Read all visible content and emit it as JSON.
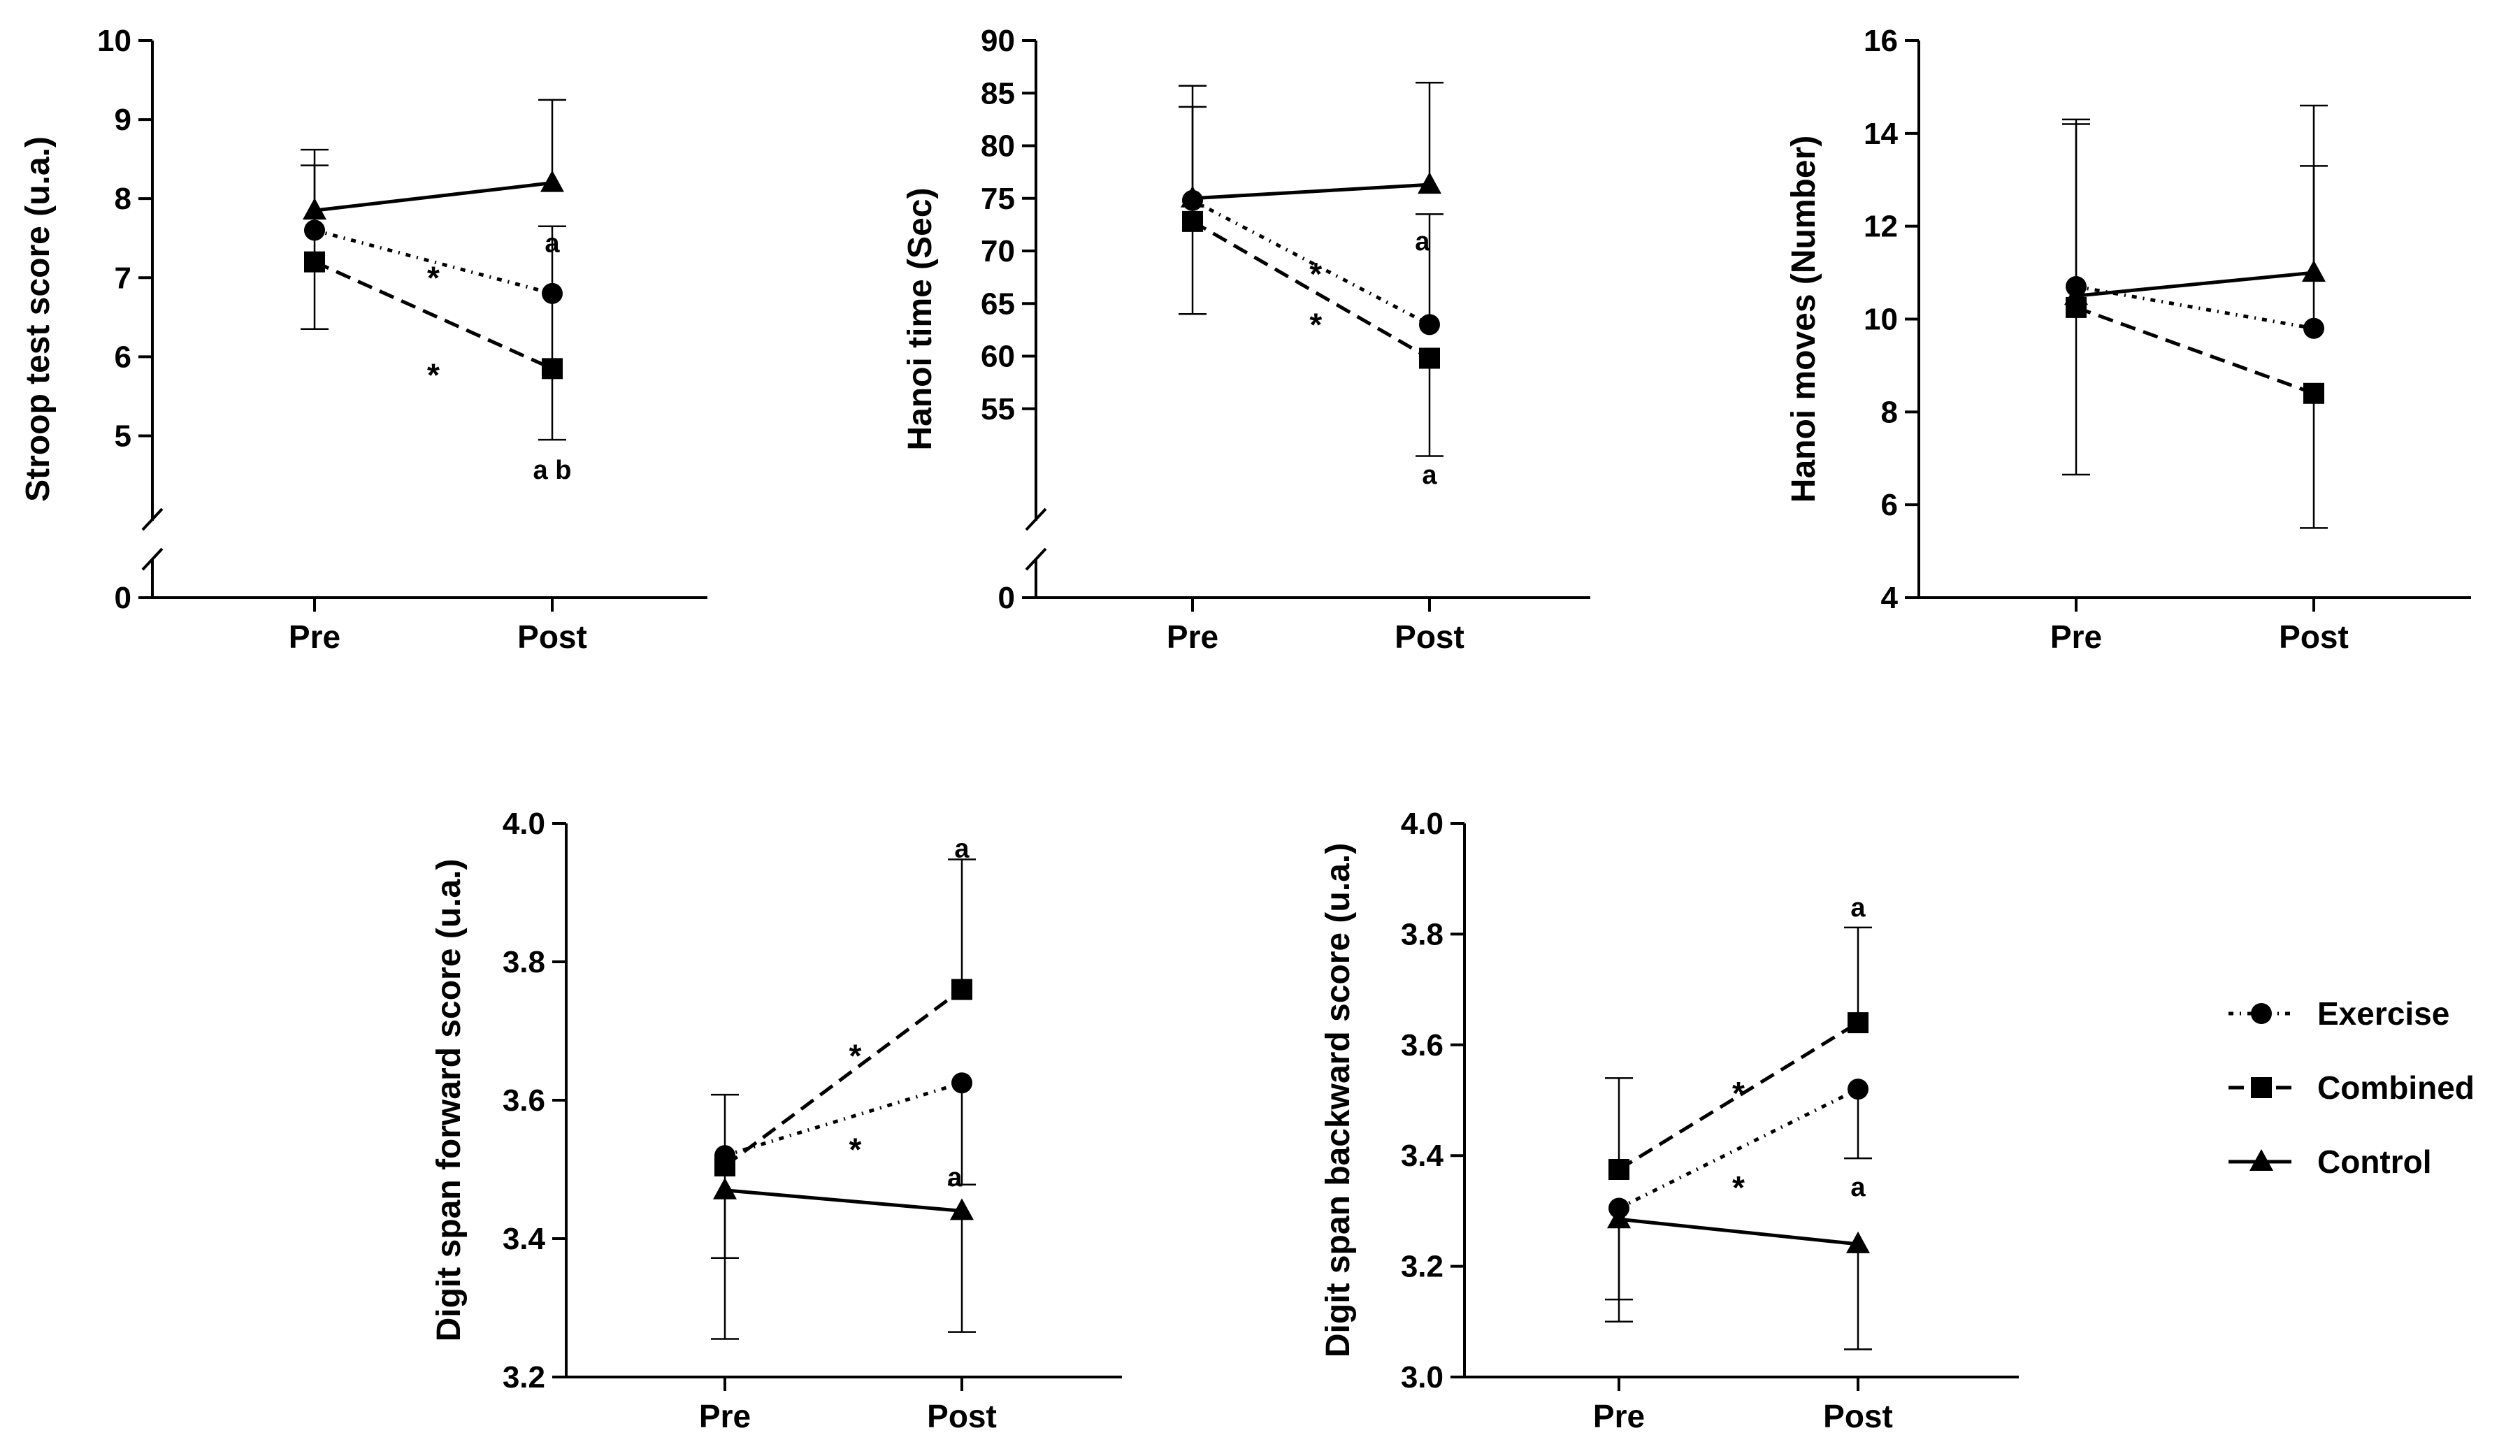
{
  "legend": {
    "items": [
      {
        "label": "Exercise",
        "marker": "circle",
        "dash": "long-dash"
      },
      {
        "label": "Combined",
        "marker": "square",
        "dash": "dash-dot"
      },
      {
        "label": "Control",
        "marker": "triangle",
        "dash": "solid"
      }
    ]
  },
  "chart_data": [
    {
      "type": "line",
      "ylabel": "Stroop test score (u.a.)",
      "categories": [
        "Pre",
        "Post"
      ],
      "yticks": [
        5,
        6,
        7,
        8,
        9,
        10
      ],
      "zero_label": "0",
      "broken_axis": true,
      "ylim": [
        4.5,
        10
      ],
      "series": [
        {
          "name": "Exercise",
          "values": [
            7.6,
            6.8
          ],
          "err_up": [
            null,
            7.65
          ],
          "err_down": [
            null,
            4.95
          ]
        },
        {
          "name": "Combined",
          "values": [
            7.2,
            5.85
          ],
          "err_up": [
            8.42,
            null
          ],
          "err_down": [
            6.35,
            null
          ]
        },
        {
          "name": "Control",
          "values": [
            7.85,
            8.2
          ],
          "err_up": [
            8.62,
            9.25
          ],
          "err_down": [
            null,
            null
          ]
        }
      ],
      "annotations": [
        {
          "text": "*",
          "x": 0.5,
          "y": 7.05
        },
        {
          "text": "*",
          "x": 0.5,
          "y": 5.82
        },
        {
          "text": "a",
          "x": 1.0,
          "y": 7.45
        },
        {
          "text": "a b",
          "x": 1.0,
          "y": 4.58
        }
      ]
    },
    {
      "type": "line",
      "ylabel": "Hanoi time (Sec)",
      "categories": [
        "Pre",
        "Post"
      ],
      "yticks": [
        55,
        60,
        65,
        70,
        75,
        80,
        85,
        90
      ],
      "zero_label": "0",
      "broken_axis": true,
      "ylim": [
        50,
        90
      ],
      "series": [
        {
          "name": "Exercise",
          "values": [
            74.8,
            63.0
          ],
          "err_up": [
            83.7,
            73.5
          ],
          "err_down": [
            64.0,
            null
          ]
        },
        {
          "name": "Combined",
          "values": [
            72.8,
            59.8
          ],
          "err_up": [
            null,
            null
          ],
          "err_down": [
            null,
            50.5
          ]
        },
        {
          "name": "Control",
          "values": [
            75.0,
            76.3
          ],
          "err_up": [
            85.7,
            86.0
          ],
          "err_down": [
            null,
            null
          ]
        }
      ],
      "annotations": [
        {
          "text": "*",
          "x": 0.52,
          "y": 68.2
        },
        {
          "text": "*",
          "x": 0.52,
          "y": 63.4
        },
        {
          "text": "a",
          "x": 0.97,
          "y": 71.0
        },
        {
          "text": "a",
          "x": 1.0,
          "y": 48.8
        }
      ]
    },
    {
      "type": "line",
      "ylabel": "Hanoi moves (Number)",
      "categories": [
        "Pre",
        "Post"
      ],
      "yticks": [
        4,
        6,
        8,
        10,
        12,
        14,
        16
      ],
      "ylim": [
        4,
        16
      ],
      "series": [
        {
          "name": "Exercise",
          "values": [
            10.7,
            9.8
          ],
          "err_up": [
            14.3,
            13.3
          ],
          "err_down": [
            null,
            null
          ]
        },
        {
          "name": "Combined",
          "values": [
            10.25,
            8.4
          ],
          "err_up": [
            null,
            null
          ],
          "err_down": [
            6.65,
            5.5
          ]
        },
        {
          "name": "Control",
          "values": [
            10.5,
            11.0
          ],
          "err_up": [
            14.2,
            14.6
          ],
          "err_down": [
            null,
            null
          ]
        }
      ],
      "annotations": []
    },
    {
      "type": "line",
      "ylabel": "Digit span forward score (u.a.)",
      "categories": [
        "Pre",
        "Post"
      ],
      "yticks": [
        3.2,
        3.4,
        3.6,
        3.8,
        4.0
      ],
      "ytick_labels": [
        "3.2",
        "3.4",
        "3.6",
        "3.8",
        "4.0"
      ],
      "ylim": [
        3.2,
        4.0
      ],
      "series": [
        {
          "name": "Exercise",
          "values": [
            3.52,
            3.625
          ],
          "err_up": [
            3.608,
            null
          ],
          "err_down": [
            null,
            3.478
          ]
        },
        {
          "name": "Combined",
          "values": [
            3.505,
            3.76
          ],
          "err_up": [
            null,
            3.948
          ],
          "err_down": [
            3.372,
            null
          ]
        },
        {
          "name": "Control",
          "values": [
            3.47,
            3.44
          ],
          "err_up": [
            null,
            null
          ],
          "err_down": [
            3.255,
            3.265
          ]
        }
      ],
      "annotations": [
        {
          "text": "*",
          "x": 0.55,
          "y": 3.67
        },
        {
          "text": "*",
          "x": 0.55,
          "y": 3.535
        },
        {
          "text": "a",
          "x": 0.97,
          "y": 3.49
        },
        {
          "text": "a",
          "x": 1.0,
          "y": 3.965
        }
      ]
    },
    {
      "type": "line",
      "ylabel": "Digit span backward score (u.a.)",
      "categories": [
        "Pre",
        "Post"
      ],
      "yticks": [
        3.0,
        3.2,
        3.4,
        3.6,
        3.8,
        4.0
      ],
      "ytick_labels": [
        "3.0",
        "3.2",
        "3.4",
        "3.6",
        "3.8",
        "4.0"
      ],
      "ylim": [
        3.0,
        4.0
      ],
      "series": [
        {
          "name": "Exercise",
          "values": [
            3.305,
            3.52
          ],
          "err_up": [
            null,
            null
          ],
          "err_down": [
            3.14,
            3.395
          ]
        },
        {
          "name": "Combined",
          "values": [
            3.375,
            3.64
          ],
          "err_up": [
            3.54,
            3.812
          ],
          "err_down": [
            null,
            null
          ]
        },
        {
          "name": "Control",
          "values": [
            3.285,
            3.24
          ],
          "err_up": [
            null,
            null
          ],
          "err_down": [
            3.1,
            3.05
          ]
        }
      ],
      "annotations": [
        {
          "text": "*",
          "x": 0.5,
          "y": 3.52
        },
        {
          "text": "*",
          "x": 0.5,
          "y": 3.35
        },
        {
          "text": "a",
          "x": 1.0,
          "y": 3.345
        },
        {
          "text": "a",
          "x": 1.0,
          "y": 3.85
        }
      ]
    }
  ]
}
